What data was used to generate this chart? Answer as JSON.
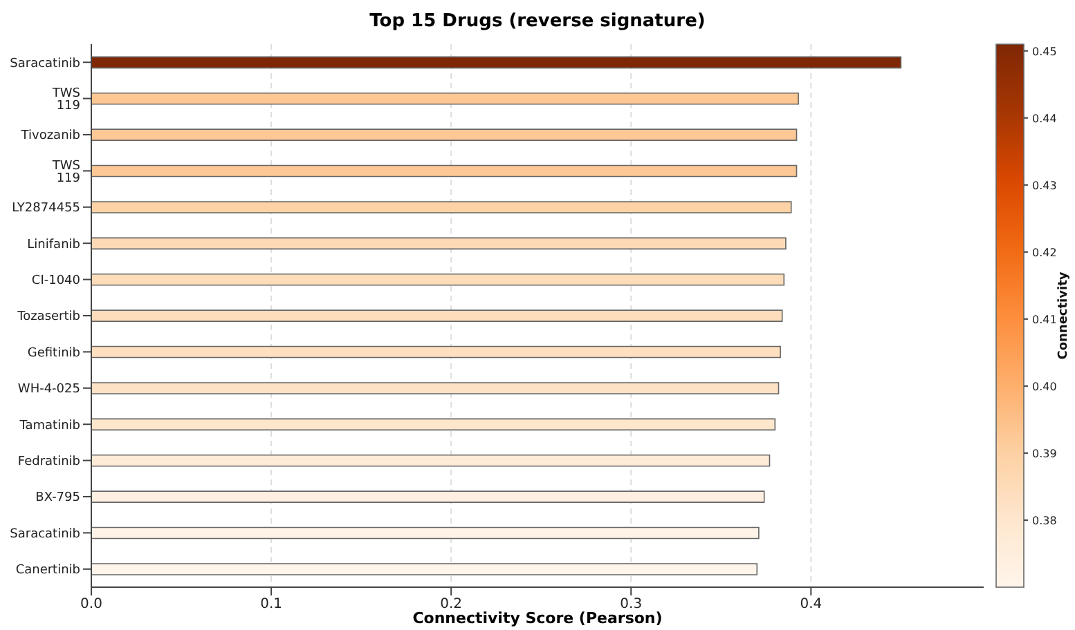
{
  "chart_data": {
    "type": "bar",
    "orientation": "horizontal",
    "title": "Top 15 Drugs (reverse signature)",
    "xlabel": "Connectivity Score (Pearson)",
    "clabel": "Connectivity",
    "categories": [
      "Saracatinib",
      "TWS 119",
      "Tivozanib",
      "TWS 119",
      "LY2874455",
      "Linifanib",
      "CI-1040",
      "Tozasertib",
      "Gefitinib",
      "WH-4-025",
      "Tamatinib",
      "Fedratinib",
      "BX-795",
      "Saracatinib",
      "Canertinib"
    ],
    "values": [
      0.45,
      0.393,
      0.392,
      0.392,
      0.389,
      0.386,
      0.385,
      0.384,
      0.383,
      0.382,
      0.38,
      0.377,
      0.374,
      0.371,
      0.37
    ],
    "colors": [
      "#7f2704",
      "#fdc793",
      "#fdc895",
      "#fdc895",
      "#fdd2a6",
      "#fddab5",
      "#fddcb9",
      "#fdddbb",
      "#fedfc0",
      "#fee2c5",
      "#fee6cd",
      "#feebd7",
      "#feefe0",
      "#fff3e7",
      "#fff5eb"
    ],
    "xlim": [
      0,
      0.496
    ],
    "xticks": [
      {
        "value": 0,
        "label": "0.0"
      },
      0.1,
      0.2,
      0.3,
      0.4
    ],
    "grid": "x",
    "clim": [
      0.37,
      0.451
    ],
    "cticks": [
      0.38,
      0.39,
      {
        "value": 0.4,
        "label": "0.40"
      },
      0.41,
      0.42,
      0.43,
      0.44,
      0.45
    ]
  }
}
